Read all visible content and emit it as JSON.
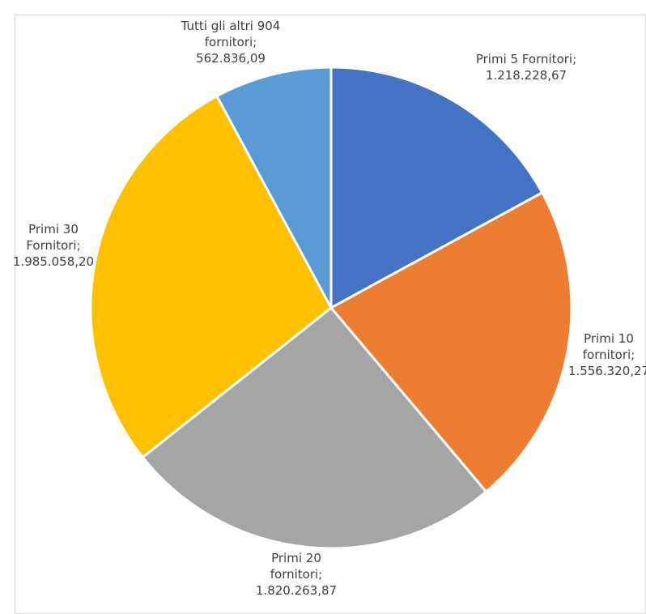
{
  "chart_data": {
    "type": "pie",
    "title": "",
    "legend": "none",
    "categories": [
      "Primi 5 Fornitori",
      "Primi 10 fornitori",
      "Primi 20 fornitori",
      "Primi 30 Fornitori",
      "Tutti gli altri 904 fornitori"
    ],
    "values": [
      1218228.67,
      1556320.27,
      1820263.87,
      1985058.2,
      562836.09
    ],
    "colors": [
      "#4472C4",
      "#ED7D31",
      "#A5A5A5",
      "#FFC000",
      "#5B9BD5"
    ],
    "data_labels": [
      {
        "lines": [
          "Primi 5 Fornitori;",
          "1.218.228,67"
        ]
      },
      {
        "lines": [
          "Primi 10",
          "fornitori;",
          "1.556.320,27"
        ]
      },
      {
        "lines": [
          "Primi 20",
          "fornitori;",
          "1.820.263,87"
        ]
      },
      {
        "lines": [
          "Primi 30",
          "Fornitori;",
          "1.985.058,20"
        ]
      },
      {
        "lines": [
          "Tutti gli altri 904",
          "fornitori;",
          "562.836,09"
        ]
      }
    ]
  }
}
